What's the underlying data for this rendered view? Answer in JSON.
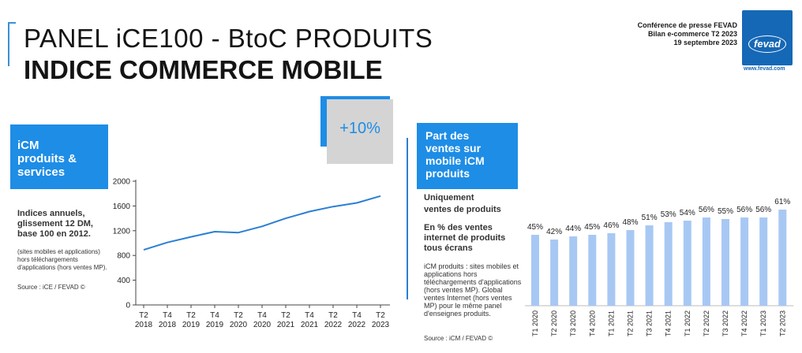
{
  "header": {
    "title_line1": "PANEL iCE100 - BtoC PRODUITS",
    "title_line2": "INDICE COMMERCE MOBILE",
    "conference": "Conférence de presse FEVAD",
    "bilan": "Bilan e-commerce T2 2023",
    "date": "19 septembre 2023",
    "logo_text": "fevad",
    "logo_url": "www.fevad.com"
  },
  "left_panel": {
    "box_label": "iCM\nproduits &\nservices",
    "growth_label": "+10%",
    "description": "Indices annuels,\nglissement 12 DM,\nbase 100 en 2012.",
    "note": "(sites mobiles et applications)\nhors téléchargements\nd'applications (hors ventes MP).",
    "source": "Source : iCE / FEVAD ©"
  },
  "right_panel": {
    "box_label": "Part des\nventes sur\nmobile iCM\nproduits",
    "subtitle1": "Uniquement\nventes de produits",
    "subtitle2": "En % des ventes\ninternet de produits\ntous écrans",
    "note": "iCM  produits : sites mobiles et applications hors téléchargements d'applications (hors ventes MP). Global ventes Internet (hors ventes MP) pour le même panel d'enseignes produits.",
    "source": "Source : iCM / FEVAD ©"
  },
  "colors": {
    "accent_blue": "#1e8de6",
    "line_blue": "#2a7fd4",
    "bar_blue": "#a8c8f4",
    "growth_bg": "#d4d4d4"
  },
  "chart_data": [
    {
      "type": "line",
      "title": "",
      "xlabel": "",
      "ylabel": "",
      "ylim": [
        0,
        2000
      ],
      "yticks": [
        0,
        400,
        800,
        1200,
        1600,
        2000
      ],
      "grid": false,
      "categories": [
        "T2 2018",
        "T4 2018",
        "T2 2019",
        "T4 2019",
        "T2 2020",
        "T4 2020",
        "T2 2021",
        "T4 2021",
        "T2 2022",
        "T4 2022",
        "T2 2023"
      ],
      "series": [
        {
          "values": [
            890,
            1010,
            1100,
            1185,
            1170,
            1270,
            1400,
            1510,
            1590,
            1650,
            1760
          ]
        }
      ]
    },
    {
      "type": "bar",
      "title": "",
      "xlabel": "",
      "ylabel": "",
      "ylim": [
        0,
        100
      ],
      "grid": false,
      "categories": [
        "T1 2020",
        "T2 2020",
        "T3 2020",
        "T4 2020",
        "T1 2021",
        "T2 2021",
        "T3 2021",
        "T4 2021",
        "T1 2022",
        "T2 2022",
        "T3 2022",
        "T4 2022",
        "T1 2023",
        "T2 2023"
      ],
      "values": [
        45,
        42,
        44,
        45,
        46,
        48,
        51,
        53,
        54,
        56,
        55,
        56,
        56,
        61
      ],
      "data_labels": [
        "45%",
        "42%",
        "44%",
        "45%",
        "46%",
        "48%",
        "51%",
        "53%",
        "54%",
        "56%",
        "55%",
        "56%",
        "56%",
        "61%"
      ]
    }
  ]
}
